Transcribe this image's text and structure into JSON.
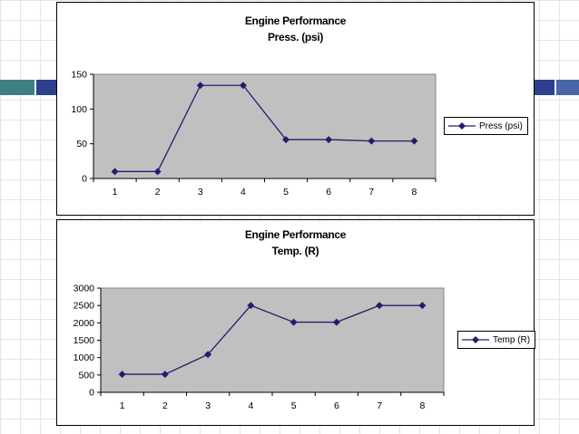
{
  "chart_data": [
    {
      "type": "line",
      "title": "Engine Performance",
      "subtitle": "Press. (psi)",
      "categories": [
        "1",
        "2",
        "3",
        "4",
        "5",
        "6",
        "7",
        "8"
      ],
      "series": [
        {
          "name": "Press (psi)",
          "values": [
            10,
            10,
            134,
            134,
            56,
            56,
            54,
            54
          ],
          "color": "#1f1f6e"
        }
      ],
      "ylim": [
        0,
        150
      ],
      "yticks": [
        "0",
        "50",
        "100",
        "150"
      ],
      "grid": false,
      "plot_background": "#c0c0c0",
      "legend_position": "right"
    },
    {
      "type": "line",
      "title": "Engine Performance",
      "subtitle": "Temp. (R)",
      "categories": [
        "1",
        "2",
        "3",
        "4",
        "5",
        "6",
        "7",
        "8"
      ],
      "series": [
        {
          "name": "Temp (R)",
          "values": [
            520,
            520,
            1090,
            2500,
            2020,
            2020,
            2500,
            2500
          ],
          "color": "#1f1f6e"
        }
      ],
      "ylim": [
        0,
        3000
      ],
      "yticks": [
        "0",
        "500",
        "1000",
        "1500",
        "2000",
        "2500",
        "3000"
      ],
      "grid": false,
      "plot_background": "#c0c0c0",
      "legend_position": "right"
    }
  ],
  "colors": {
    "accent_teal": "#3f7f84",
    "accent_navy": "#2d3f8e",
    "accent_blue": "#4a66a8"
  }
}
